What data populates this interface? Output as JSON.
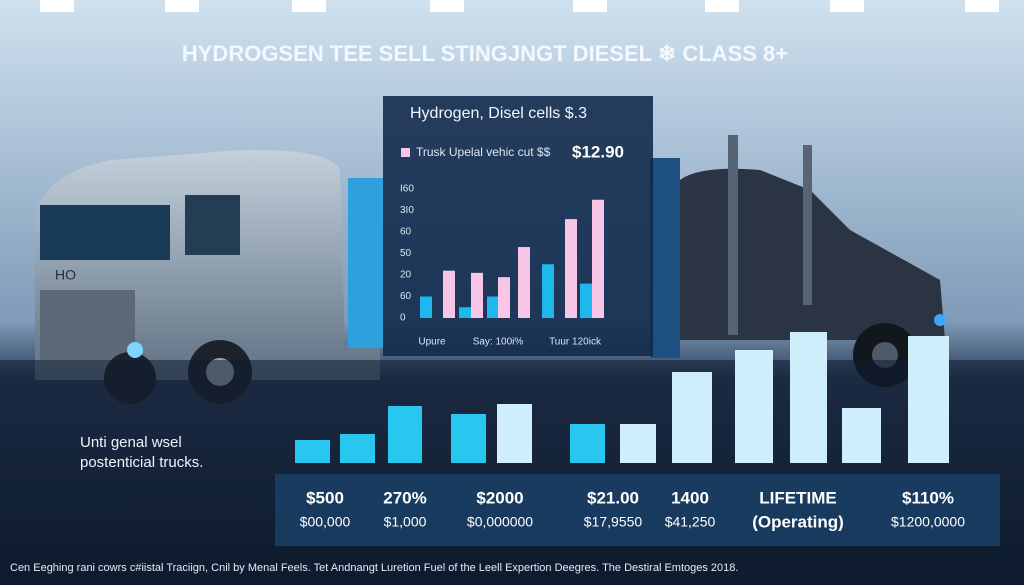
{
  "header": {
    "title": "HYDROGSEN TEE SELL STINGJNGT DIESEL ❄ CLASS 8+"
  },
  "truck_label": "HO",
  "panel": {
    "title": "Hydrogen, Disel cells $.3",
    "legend": "Trusk Upelal vehic cut $$",
    "legend_value": "$12.90",
    "yticks": [
      {
        "value": 0,
        "label": "0"
      },
      {
        "value": 1,
        "label": "60"
      },
      {
        "value": 2,
        "label": "20"
      },
      {
        "value": 3,
        "label": "50"
      },
      {
        "value": 4,
        "label": "60"
      },
      {
        "value": 5,
        "label": "3I0"
      },
      {
        "value": 6,
        "label": "I60"
      }
    ],
    "bars": [
      {
        "color": "#1fb8ee",
        "value": 1.0
      },
      {
        "color": "#f7c6e6",
        "value": 2.2
      },
      {
        "color": "#1fb8ee",
        "value": 0.5
      },
      {
        "color": "#f7c6e6",
        "value": 2.1
      },
      {
        "color": "#1fb8ee",
        "value": 1.0
      },
      {
        "color": "#f7c6e6",
        "value": 1.9
      },
      {
        "color": "#f7c6e6",
        "value": 3.3
      },
      {
        "color": "#1fb8ee",
        "value": 2.5
      },
      {
        "color": "#f7c6e6",
        "value": 4.6
      },
      {
        "color": "#1fb8ee",
        "value": 1.6
      },
      {
        "color": "#f7c6e6",
        "value": 5.5
      }
    ],
    "xlabels": [
      "Upure",
      "Say: 100i%",
      "Tuur 120ick"
    ]
  },
  "side_note": [
    "Unti genal wsel",
    "postenticial trucks."
  ],
  "bottom_bars": [
    {
      "color": "#29c6f0",
      "value": 23
    },
    {
      "color": "#29c6f0",
      "value": 29
    },
    {
      "color": "#29c6f0",
      "value": 57
    },
    {
      "color": "#29c6f0",
      "value": 49
    },
    {
      "color": "#cdeefa",
      "value": 59
    },
    {
      "color": "#29c6f0",
      "value": 39
    },
    {
      "color": "#cdeefa",
      "value": 39
    },
    {
      "color": "#cdeefa",
      "value": 91
    },
    {
      "color": "#cdeefa",
      "value": 113
    },
    {
      "color": "#cdeefa",
      "value": 131
    },
    {
      "color": "#cdeefa",
      "value": 55
    },
    {
      "color": "#cdeefa",
      "value": 127
    }
  ],
  "stats": [
    [
      "$500",
      "$00,000"
    ],
    [
      "270%",
      "$1,000"
    ],
    [
      "$2000",
      "$0,000000"
    ],
    [
      "$21.00",
      "$17,9550"
    ],
    [
      "1400",
      "$41,250"
    ],
    [
      "LIFETIME",
      "(Operating)"
    ],
    [
      "$110%",
      "$1200,0000"
    ]
  ],
  "footer": "Cen Eeghing rani cowrs c#iistal Traciign, Cnil by Menal Feels. Tet Andnangt Luretion Fuel of the Leell Expertion Deegres. The Destiral Emtoges 2018."
}
